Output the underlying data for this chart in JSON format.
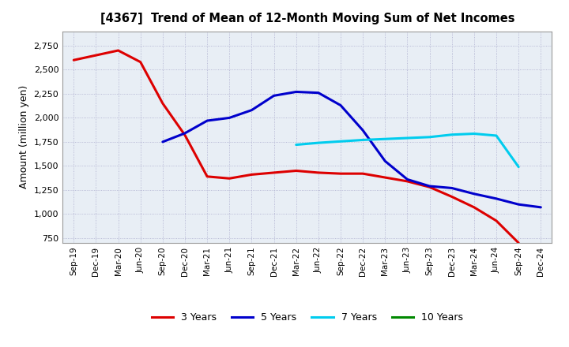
{
  "title": "[4367]  Trend of Mean of 12-Month Moving Sum of Net Incomes",
  "ylabel": "Amount (million yen)",
  "background_color": "#ffffff",
  "plot_background_color": "#e8eef5",
  "grid_color": "#aaaacc",
  "x_labels": [
    "Sep-19",
    "Dec-19",
    "Mar-20",
    "Jun-20",
    "Sep-20",
    "Dec-20",
    "Mar-21",
    "Jun-21",
    "Sep-21",
    "Dec-21",
    "Mar-22",
    "Jun-22",
    "Sep-22",
    "Dec-22",
    "Mar-23",
    "Jun-23",
    "Sep-23",
    "Dec-23",
    "Mar-24",
    "Jun-24",
    "Sep-24",
    "Dec-24"
  ],
  "series": [
    {
      "name": "3 Years",
      "color": "#dd0000",
      "data": [
        2600,
        2650,
        2700,
        2580,
        2150,
        1820,
        1390,
        1370,
        1410,
        1430,
        1450,
        1430,
        1420,
        1420,
        1380,
        1340,
        1280,
        1180,
        1070,
        930,
        700,
        null
      ]
    },
    {
      "name": "5 Years",
      "color": "#0000cc",
      "data": [
        null,
        null,
        null,
        null,
        1750,
        1840,
        1970,
        2000,
        2080,
        2230,
        2270,
        2260,
        2130,
        1870,
        1550,
        1360,
        1290,
        1270,
        1210,
        1160,
        1100,
        1070
      ]
    },
    {
      "name": "7 Years",
      "color": "#00ccee",
      "data": [
        null,
        null,
        null,
        null,
        null,
        null,
        null,
        null,
        null,
        null,
        1720,
        1740,
        1755,
        1770,
        1780,
        1790,
        1800,
        1825,
        1835,
        1815,
        1490,
        null
      ]
    },
    {
      "name": "10 Years",
      "color": "#008800",
      "data": [
        null,
        null,
        null,
        null,
        null,
        null,
        null,
        null,
        null,
        null,
        null,
        null,
        null,
        null,
        null,
        null,
        null,
        null,
        null,
        null,
        null,
        null
      ]
    }
  ],
  "ylim": [
    700,
    2900
  ],
  "yticks": [
    750,
    1000,
    1250,
    1500,
    1750,
    2000,
    2250,
    2500,
    2750
  ],
  "linewidth": 2.2
}
